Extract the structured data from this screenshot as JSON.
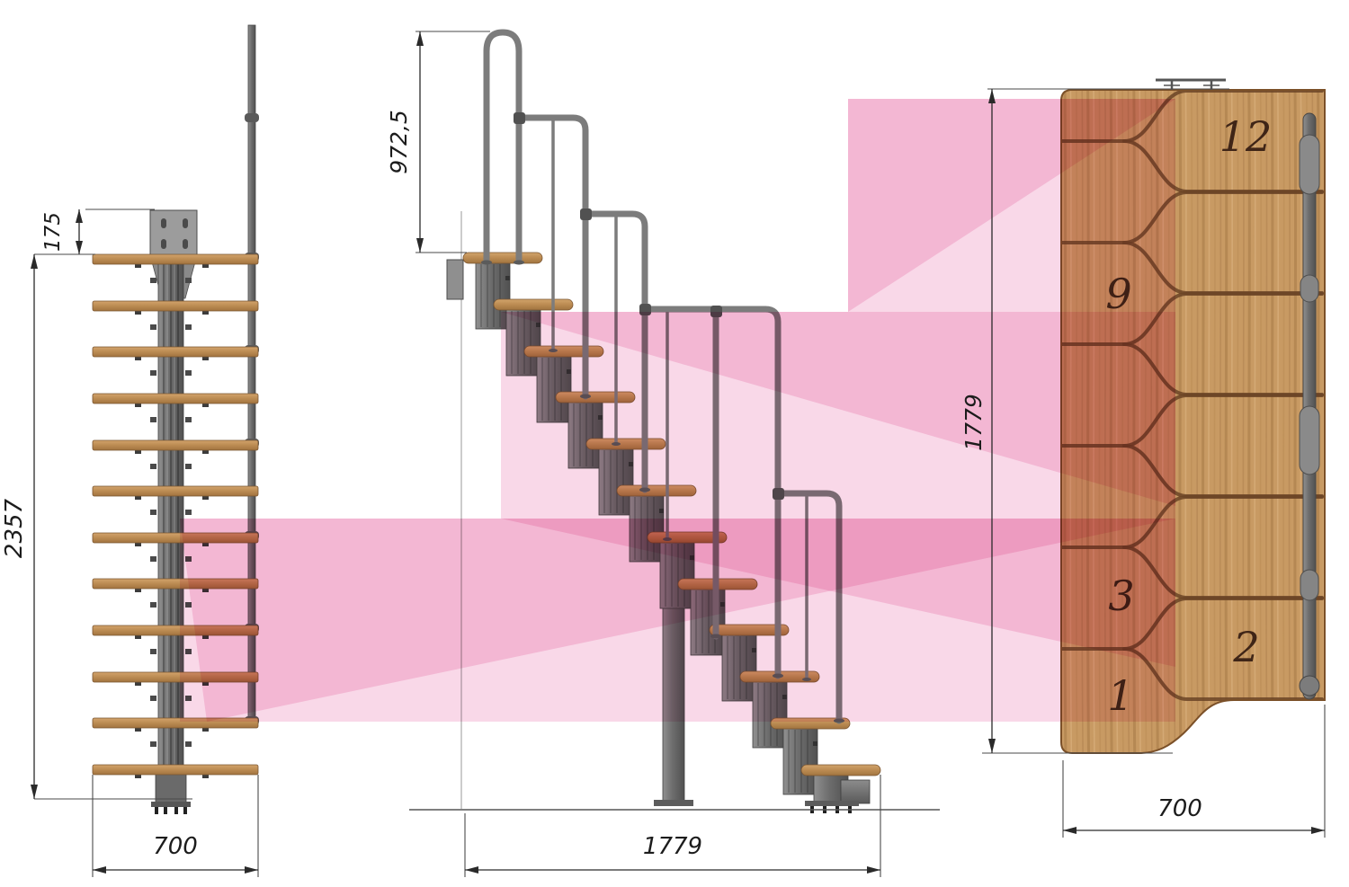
{
  "dims": {
    "front_offset": "175",
    "front_height": "2357",
    "front_width": "700",
    "side_rail_height": "972,5",
    "side_length": "1779",
    "plan_length": "1779",
    "plan_width": "700"
  },
  "front": {
    "tread_count": 12
  },
  "side": {
    "step_count": 12
  },
  "plan": {
    "divider_rows": 6,
    "step_labels": [
      "12",
      "9",
      "3",
      "2",
      "1"
    ]
  },
  "colors": {
    "overlay_pink": "#f9d8e8",
    "wood_light": "#cfa167",
    "wood_dark": "#a87a44",
    "plan_wood": "#c89a63",
    "metal": "#6f6f6f",
    "line_color": "#2a2a2a",
    "wood_line": "#6b4426",
    "number_color": "#3f2517"
  }
}
